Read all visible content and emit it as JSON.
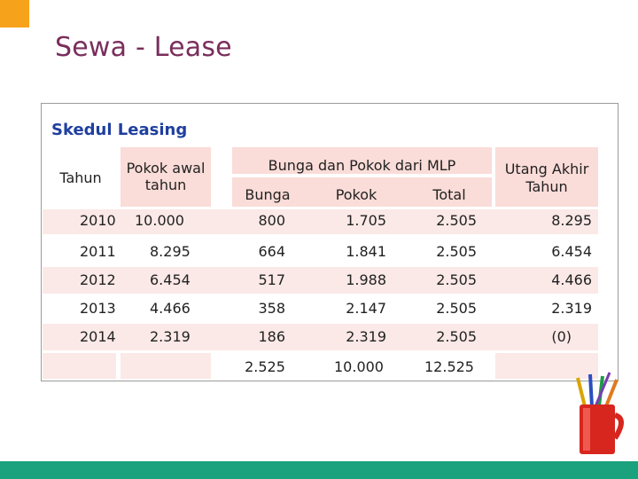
{
  "page": {
    "title": "Sewa - Lease",
    "subtitle": "Skedul Leasing"
  },
  "table": {
    "headers": {
      "tahun": "Tahun",
      "pokok_awal": "Pokok awal tahun",
      "group": "Bunga dan Pokok dari MLP",
      "bunga": "Bunga",
      "pokok": "Pokok",
      "total": "Total",
      "utang_akhir": "Utang Akhir Tahun"
    },
    "rows": [
      {
        "tahun": "2010",
        "pokok_awal": "10.000",
        "bunga": "800",
        "pokok": "1.705",
        "total": "2.505",
        "utang_akhir": "8.295"
      },
      {
        "tahun": "2011",
        "pokok_awal": "8.295",
        "bunga": "664",
        "pokok": "1.841",
        "total": "2.505",
        "utang_akhir": "6.454"
      },
      {
        "tahun": "2012",
        "pokok_awal": "6.454",
        "bunga": "517",
        "pokok": "1.988",
        "total": "2.505",
        "utang_akhir": "4.466"
      },
      {
        "tahun": "2013",
        "pokok_awal": "4.466",
        "bunga": "358",
        "pokok": "2.147",
        "total": "2.505",
        "utang_akhir": "2.319"
      },
      {
        "tahun": "2014",
        "pokok_awal": "2.319",
        "bunga": "186",
        "pokok": "2.319",
        "total": "2.505",
        "utang_akhir": "(0)"
      }
    ],
    "totals": {
      "bunga": "2.525",
      "pokok": "10.000",
      "total": "12.525"
    }
  },
  "colors": {
    "title": "#7a2e5c",
    "subtitle": "#1f3f9f",
    "header_fill": "#fadcd8",
    "row_fill": "#fbe9e7",
    "accent_corner": "#f7a21b",
    "bottom_bar": "#1aa17d"
  },
  "icons": {
    "decoration": "pencil-cup-icon"
  }
}
